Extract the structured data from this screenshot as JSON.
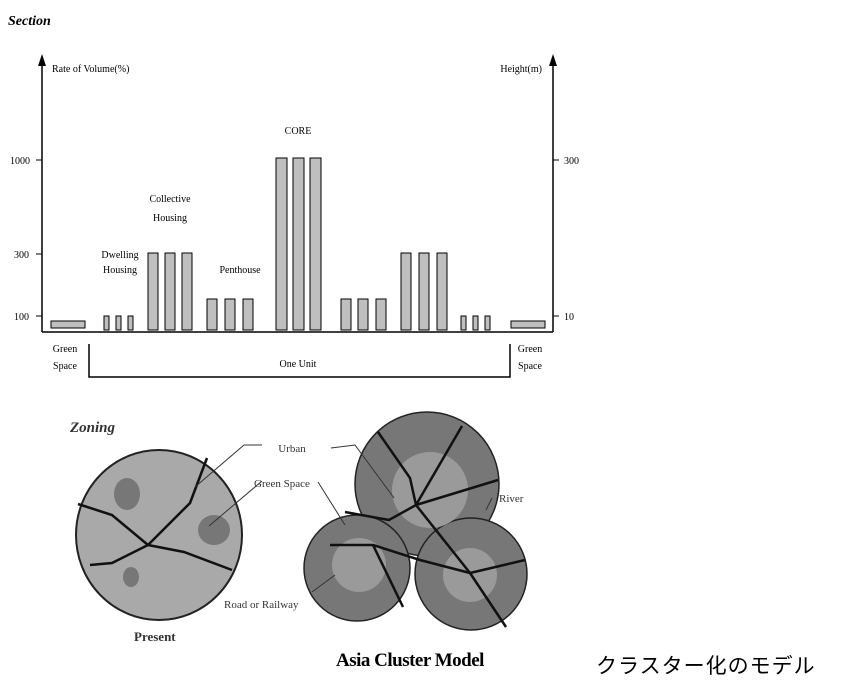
{
  "section": {
    "title": "Section",
    "left_axis_label": "Rate of Volume(%)",
    "right_axis_label": "Height(m)",
    "left_ticks": [
      "1000",
      "300",
      "100"
    ],
    "right_ticks": [
      "300",
      "10"
    ],
    "labels": {
      "core": "CORE",
      "collective_1": "Collective",
      "collective_2": "Housing",
      "dwelling_1": "Dwelling",
      "dwelling_2": "Housing",
      "penthouse": "Penthouse",
      "green_left_1": "Green",
      "green_left_2": "Space",
      "green_right_1": "Green",
      "green_right_2": "Space",
      "one_unit": "One Unit"
    }
  },
  "zoning": {
    "title": "Zoning",
    "urban": "Urban",
    "green_space": "Green Space",
    "river": "River",
    "road": "Road or Railway",
    "present": "Present",
    "asia_model": "Asia Cluster Model"
  },
  "caption": "クラスター化のモデル",
  "colors": {
    "bar": "#bfbfbf",
    "light_zone": "#a9a9a9",
    "dark_zone": "#777777",
    "mid_zone": "#9a9a9a"
  }
}
